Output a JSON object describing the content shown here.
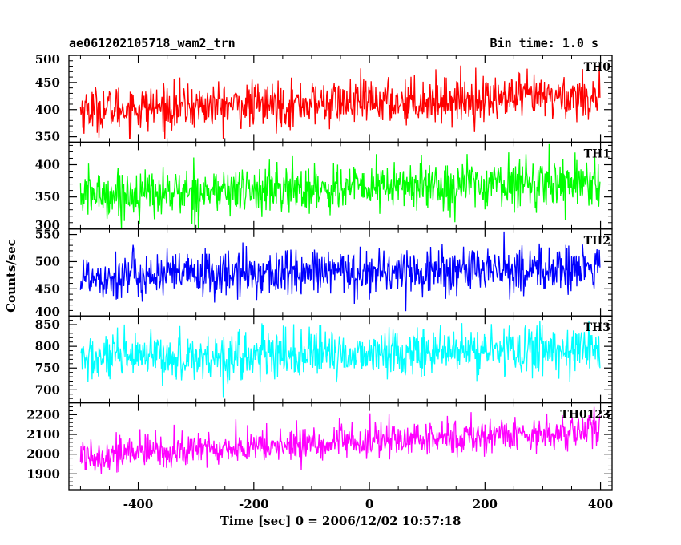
{
  "header": {
    "title": "ae061202105718_wam2_trn",
    "bin_time": "Bin time: 1.0 s"
  },
  "chart_data": {
    "type": "line",
    "title": "ae061202105718_wam2_trn",
    "xlabel": "Time [sec] 0 = 2006/12/02 10:57:18",
    "ylabel": "Counts/sec",
    "xlim": [
      -520,
      420
    ],
    "x_range": [
      -500,
      399
    ],
    "bin_time_s": 1.0,
    "x_ticks": [
      -400,
      -200,
      0,
      200,
      400
    ],
    "legend_placement": "top-right of each panel",
    "grid": false,
    "panels": [
      {
        "name": "TH0",
        "color": "#ff0000",
        "ylim": [
          340,
          500
        ],
        "y_ticks": [
          350,
          400,
          450,
          500
        ],
        "trend": {
          "start": 400,
          "end": 425
        },
        "noise_sd": 21,
        "approx_range": [
          345,
          500
        ]
      },
      {
        "name": "TH1",
        "color": "#00ff00",
        "ylim": [
          300,
          435
        ],
        "y_ticks": [
          300,
          350,
          400
        ],
        "trend": {
          "start": 353,
          "end": 375
        },
        "noise_sd": 19,
        "approx_range": [
          300,
          432
        ]
      },
      {
        "name": "TH2",
        "color": "#0000ff",
        "ylim": [
          400,
          560
        ],
        "y_ticks": [
          400,
          450,
          500,
          550
        ],
        "trend": {
          "start": 473,
          "end": 487
        },
        "noise_sd": 22,
        "approx_range": [
          400,
          560
        ]
      },
      {
        "name": "TH3",
        "color": "#00ffff",
        "ylim": [
          670,
          870
        ],
        "y_ticks": [
          700,
          750,
          800,
          850
        ],
        "trend": {
          "start": 770,
          "end": 795
        },
        "noise_sd": 28,
        "approx_range": [
          680,
          865
        ]
      },
      {
        "name": "TH0123",
        "color": "#ff00ff",
        "ylim": [
          1820,
          2260
        ],
        "y_ticks": [
          1900,
          2000,
          2100,
          2200
        ],
        "trend": {
          "start": 1995,
          "end": 2120
        },
        "noise_sd": 45,
        "approx_range": [
          1830,
          2250
        ]
      }
    ]
  }
}
